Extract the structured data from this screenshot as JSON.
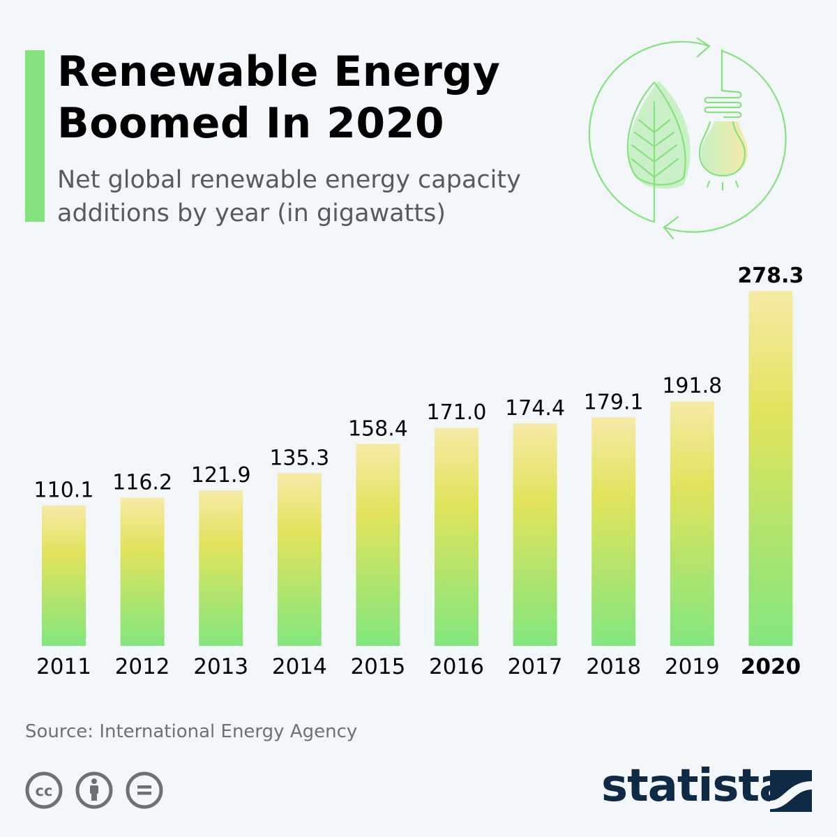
{
  "header": {
    "title_line1": "Renewable Energy",
    "title_line2": "Boomed In 2020",
    "subtitle_line1": "Net global renewable energy capacity",
    "subtitle_line2": "additions by year (in gigawatts)",
    "accent_color": "#86e27e",
    "illustration": "leaf-and-lightbulb-recycle-icon"
  },
  "chart_data": {
    "type": "bar",
    "categories": [
      "2011",
      "2012",
      "2013",
      "2014",
      "2015",
      "2016",
      "2017",
      "2018",
      "2019",
      "2020"
    ],
    "values": [
      110.1,
      116.2,
      121.9,
      135.3,
      158.4,
      171.0,
      174.4,
      179.1,
      191.8,
      278.3
    ],
    "value_labels": [
      "110.1",
      "116.2",
      "121.9",
      "135.3",
      "158.4",
      "171.0",
      "174.4",
      "179.1",
      "191.8",
      "278.3"
    ],
    "highlight_category": "2020",
    "title": "",
    "xlabel": "",
    "ylabel": "",
    "ylim": [
      0,
      278.3
    ],
    "grid": false,
    "bar_gradient": [
      "#f6eaa6",
      "#e1e35c",
      "#82e67e"
    ]
  },
  "footer": {
    "source": "Source: International Energy Agency",
    "license_icons": [
      "cc-icon",
      "attribution-icon",
      "no-derivatives-icon"
    ],
    "brand": "statista",
    "brand_color": "#0f2a44"
  }
}
